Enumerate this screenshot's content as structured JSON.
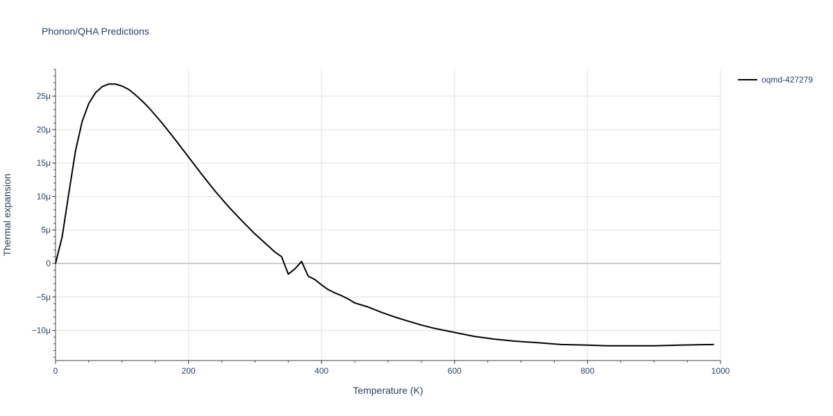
{
  "chart_data": {
    "type": "line",
    "title": "Phonon/QHA Predictions",
    "xlabel": "Temperature (K)",
    "ylabel": "Thermal expansion",
    "xlim": [
      0,
      1000
    ],
    "ylim": [
      -1.45e-05,
      2.9e-05
    ],
    "grid": true,
    "legend_position": "top-right",
    "x_ticks": [
      0,
      200,
      400,
      600,
      800,
      1000
    ],
    "x_tick_labels": [
      "0",
      "200",
      "400",
      "600",
      "800",
      "1000"
    ],
    "y_ticks": [
      -1e-05,
      -5e-06,
      0,
      5e-06,
      1e-05,
      1.5e-05,
      2e-05,
      2.5e-05
    ],
    "y_tick_labels": [
      "−10μ",
      "−5μ",
      "0",
      "5μ",
      "10μ",
      "15μ",
      "20μ",
      "25μ"
    ],
    "series": [
      {
        "name": "oqmd-427279",
        "color": "#000000",
        "x": [
          0,
          10,
          20,
          30,
          40,
          50,
          60,
          70,
          80,
          90,
          100,
          110,
          120,
          130,
          140,
          160,
          180,
          200,
          220,
          240,
          260,
          280,
          300,
          320,
          330,
          340,
          350,
          360,
          370,
          380,
          390,
          400,
          410,
          420,
          430,
          440,
          450,
          470,
          490,
          510,
          530,
          550,
          570,
          590,
          610,
          630,
          660,
          690,
          720,
          760,
          800,
          830,
          860,
          900,
          940,
          990
        ],
        "y": [
          0,
          4e-06,
          1.05e-05,
          1.68e-05,
          2.12e-05,
          2.39e-05,
          2.55e-05,
          2.64e-05,
          2.68e-05,
          2.68e-05,
          2.65e-05,
          2.6e-05,
          2.52e-05,
          2.43e-05,
          2.33e-05,
          2.1e-05,
          1.85e-05,
          1.59e-05,
          1.33e-05,
          1.08e-05,
          8.5e-06,
          6.4e-06,
          4.4e-06,
          2.6e-06,
          1.7e-06,
          1e-06,
          -1.6e-06,
          -8e-07,
          3e-07,
          -1.9e-06,
          -2.4e-06,
          -3.2e-06,
          -3.9e-06,
          -4.4e-06,
          -4.8e-06,
          -5.3e-06,
          -5.9e-06,
          -6.5e-06,
          -7.3e-06,
          -8e-06,
          -8.6e-06,
          -9.2e-06,
          -9.7e-06,
          -1.01e-05,
          -1.05e-05,
          -1.09e-05,
          -1.13e-05,
          -1.16e-05,
          -1.18e-05,
          -1.21e-05,
          -1.22e-05,
          -1.23e-05,
          -1.23e-05,
          -1.23e-05,
          -1.22e-05,
          -1.21e-05
        ]
      }
    ]
  }
}
